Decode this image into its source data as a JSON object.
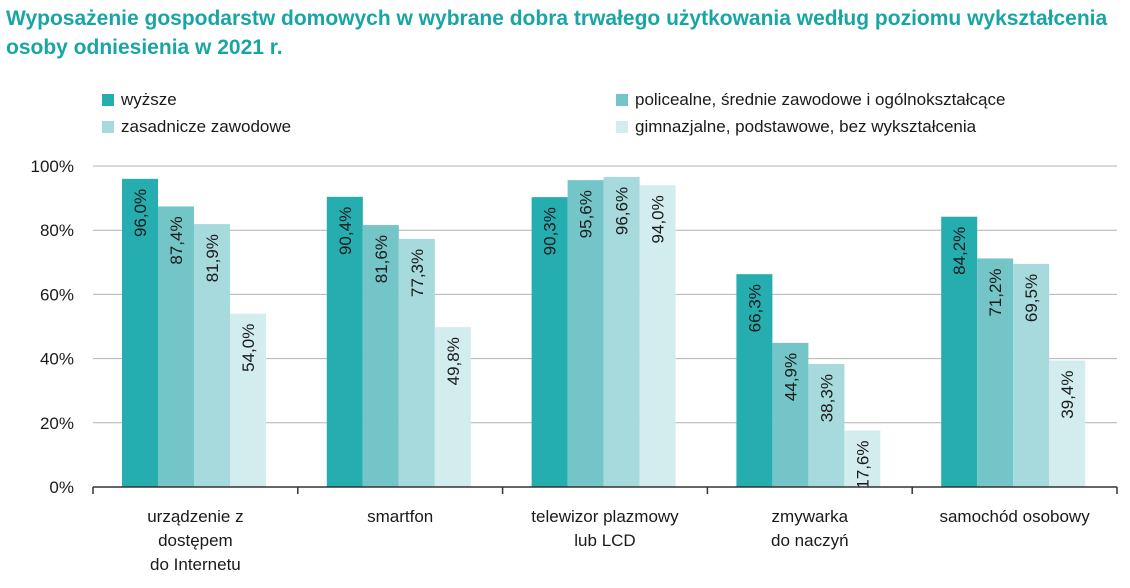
{
  "chart_data": {
    "type": "bar",
    "title": "Wyposażenie gospodarstw domowych w wybrane dobra trwałego użytkowania według poziomu wykształcenia osoby odniesienia w 2021 r.",
    "categories": [
      [
        "urządzenie z",
        "dostępem",
        "do Internetu"
      ],
      [
        "smartfon"
      ],
      [
        "telewizor plazmowy",
        "lub LCD"
      ],
      [
        "zmywarka",
        "do naczyń"
      ],
      [
        "samochód osobowy"
      ]
    ],
    "series": [
      {
        "name": "wyższe",
        "color": "#26adb0",
        "label_color": "#ffffff",
        "values": [
          96.0,
          90.4,
          90.3,
          66.3,
          84.2
        ],
        "labels": [
          "96,0%",
          "90,4%",
          "90,3%",
          "66,3%",
          "84,2%"
        ]
      },
      {
        "name": "policealne, średnie zawodowe i ogólnokształcące",
        "color": "#74c5c8",
        "label_color": "#1a1a1a",
        "values": [
          87.4,
          81.6,
          95.6,
          44.9,
          71.2
        ],
        "labels": [
          "87,4%",
          "81,6%",
          "95,6%",
          "44,9%",
          "71,2%"
        ]
      },
      {
        "name": "zasadnicze zawodowe",
        "color": "#a6dadc",
        "label_color": "#1a1a1a",
        "values": [
          81.9,
          77.3,
          96.6,
          38.3,
          69.5
        ],
        "labels": [
          "81,9%",
          "77,3%",
          "96,6%",
          "38,3%",
          "69,5%"
        ]
      },
      {
        "name": "gimnazjalne, podstawowe, bez wykształcenia",
        "color": "#d3ecee",
        "label_color": "#1a1a1a",
        "values": [
          54.0,
          49.8,
          94.0,
          17.6,
          39.4
        ],
        "labels": [
          "54,0%",
          "49,8%",
          "94,0%",
          "17,6%",
          "39,4%"
        ]
      }
    ],
    "ylim": [
      0,
      100
    ],
    "yticks": [
      0,
      20,
      40,
      60,
      80,
      100
    ],
    "ytick_labels": [
      "0%",
      "20%",
      "40%",
      "60%",
      "80%",
      "100%"
    ],
    "grid": true,
    "legend_position": "top",
    "gridline_color": "#b3b3b3",
    "axis_color": "#333333"
  }
}
